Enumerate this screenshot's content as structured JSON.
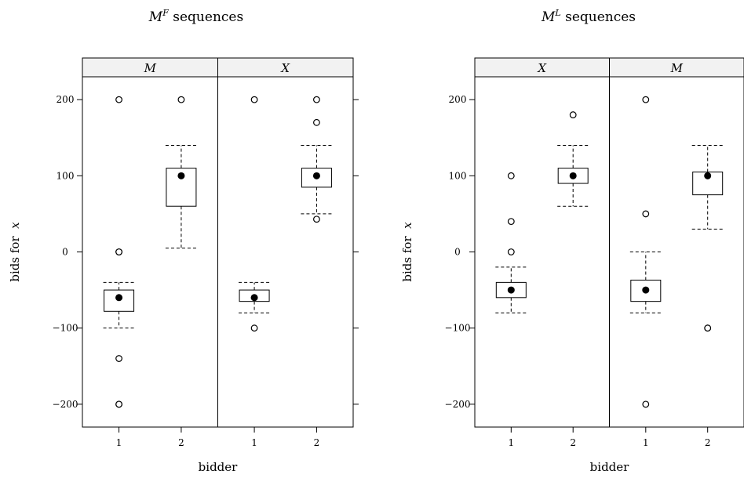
{
  "chart_data": [
    {
      "type": "box",
      "title_base": "M",
      "title_sup": "F",
      "title_rest": " sequences",
      "xlabel": "bidder",
      "ylabel_base": "bids for ",
      "ylabel_var": "x",
      "ylim": [
        -230,
        230
      ],
      "yticks": [
        -200,
        -100,
        0,
        100,
        200
      ],
      "yticklabels": [
        "−200",
        "−100",
        "0",
        "100",
        "200"
      ],
      "panels": [
        {
          "strip": "M",
          "categories": [
            "1",
            "2"
          ],
          "boxes": [
            {
              "median": -60,
              "q1": -78,
              "q3": -50,
              "whisker_low": -100,
              "whisker_high": -40,
              "outliers": [
                0,
                0,
                -140,
                -200,
                -200,
                200
              ]
            },
            {
              "median": 100,
              "q1": 60,
              "q3": 110,
              "whisker_low": 5,
              "whisker_high": 140,
              "outliers": [
                200
              ]
            }
          ]
        },
        {
          "strip": "X",
          "categories": [
            "1",
            "2"
          ],
          "boxes": [
            {
              "median": -60,
              "q1": -65,
              "q3": -50,
              "whisker_low": -80,
              "whisker_high": -40,
              "outliers": [
                -100,
                200
              ]
            },
            {
              "median": 100,
              "q1": 85,
              "q3": 110,
              "whisker_low": 50,
              "whisker_high": 140,
              "outliers": [
                43,
                170,
                200
              ]
            }
          ]
        }
      ]
    },
    {
      "type": "box",
      "title_base": "M",
      "title_sup": "L",
      "title_rest": " sequences",
      "xlabel": "bidder",
      "ylabel_base": "bids for ",
      "ylabel_var": "x",
      "ylim": [
        -230,
        230
      ],
      "yticks": [
        -200,
        -100,
        0,
        100,
        200
      ],
      "yticklabels": [
        "−200",
        "−100",
        "0",
        "100",
        "200"
      ],
      "panels": [
        {
          "strip": "X",
          "categories": [
            "1",
            "2"
          ],
          "boxes": [
            {
              "median": -50,
              "q1": -60,
              "q3": -40,
              "whisker_low": -80,
              "whisker_high": -20,
              "outliers": [
                0,
                40,
                100
              ]
            },
            {
              "median": 100,
              "q1": 90,
              "q3": 110,
              "whisker_low": 60,
              "whisker_high": 140,
              "outliers": [
                180
              ]
            }
          ]
        },
        {
          "strip": "M",
          "categories": [
            "1",
            "2"
          ],
          "boxes": [
            {
              "median": -50,
              "q1": -65,
              "q3": -37,
              "whisker_low": -80,
              "whisker_high": 0,
              "outliers": [
                50,
                200,
                -200
              ]
            },
            {
              "median": 100,
              "q1": 75,
              "q3": 105,
              "whisker_low": 30,
              "whisker_high": 140,
              "outliers": [
                -100,
                -100
              ]
            }
          ]
        }
      ]
    }
  ]
}
